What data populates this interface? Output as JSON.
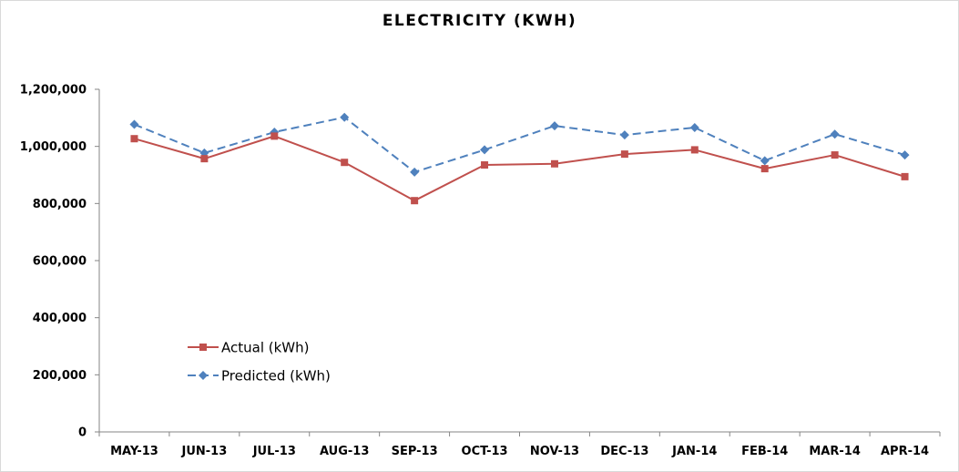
{
  "chart_data": {
    "type": "line",
    "title": "ELECTRICITY (KWH)",
    "xlabel": "",
    "ylabel": "",
    "categories": [
      "MAY-13",
      "JUN-13",
      "JUL-13",
      "AUG-13",
      "SEP-13",
      "OCT-13",
      "NOV-13",
      "DEC-13",
      "JAN-14",
      "FEB-14",
      "MAR-14",
      "APR-14"
    ],
    "ylim": [
      0,
      1200000
    ],
    "yticks": [
      0,
      200000,
      400000,
      600000,
      800000,
      1000000,
      1200000
    ],
    "ytick_labels": [
      "0",
      "200,000",
      "400,000",
      "600,000",
      "800,000",
      "1,000,000",
      "1,200,000"
    ],
    "grid": false,
    "legend_position": "lower-left",
    "series": [
      {
        "name": "Actual (kWh)",
        "color": "#c0504d",
        "marker": "square",
        "line_style": "solid",
        "values": [
          1027000,
          957000,
          1036000,
          944000,
          810000,
          935000,
          939000,
          973000,
          988000,
          922000,
          970000,
          894000
        ]
      },
      {
        "name": "Predicted (kWh)",
        "color": "#4f81bd",
        "marker": "diamond",
        "line_style": "dashed",
        "values": [
          1077000,
          977000,
          1050000,
          1102000,
          910000,
          988000,
          1072000,
          1040000,
          1066000,
          950000,
          1043000,
          970000
        ]
      }
    ]
  }
}
